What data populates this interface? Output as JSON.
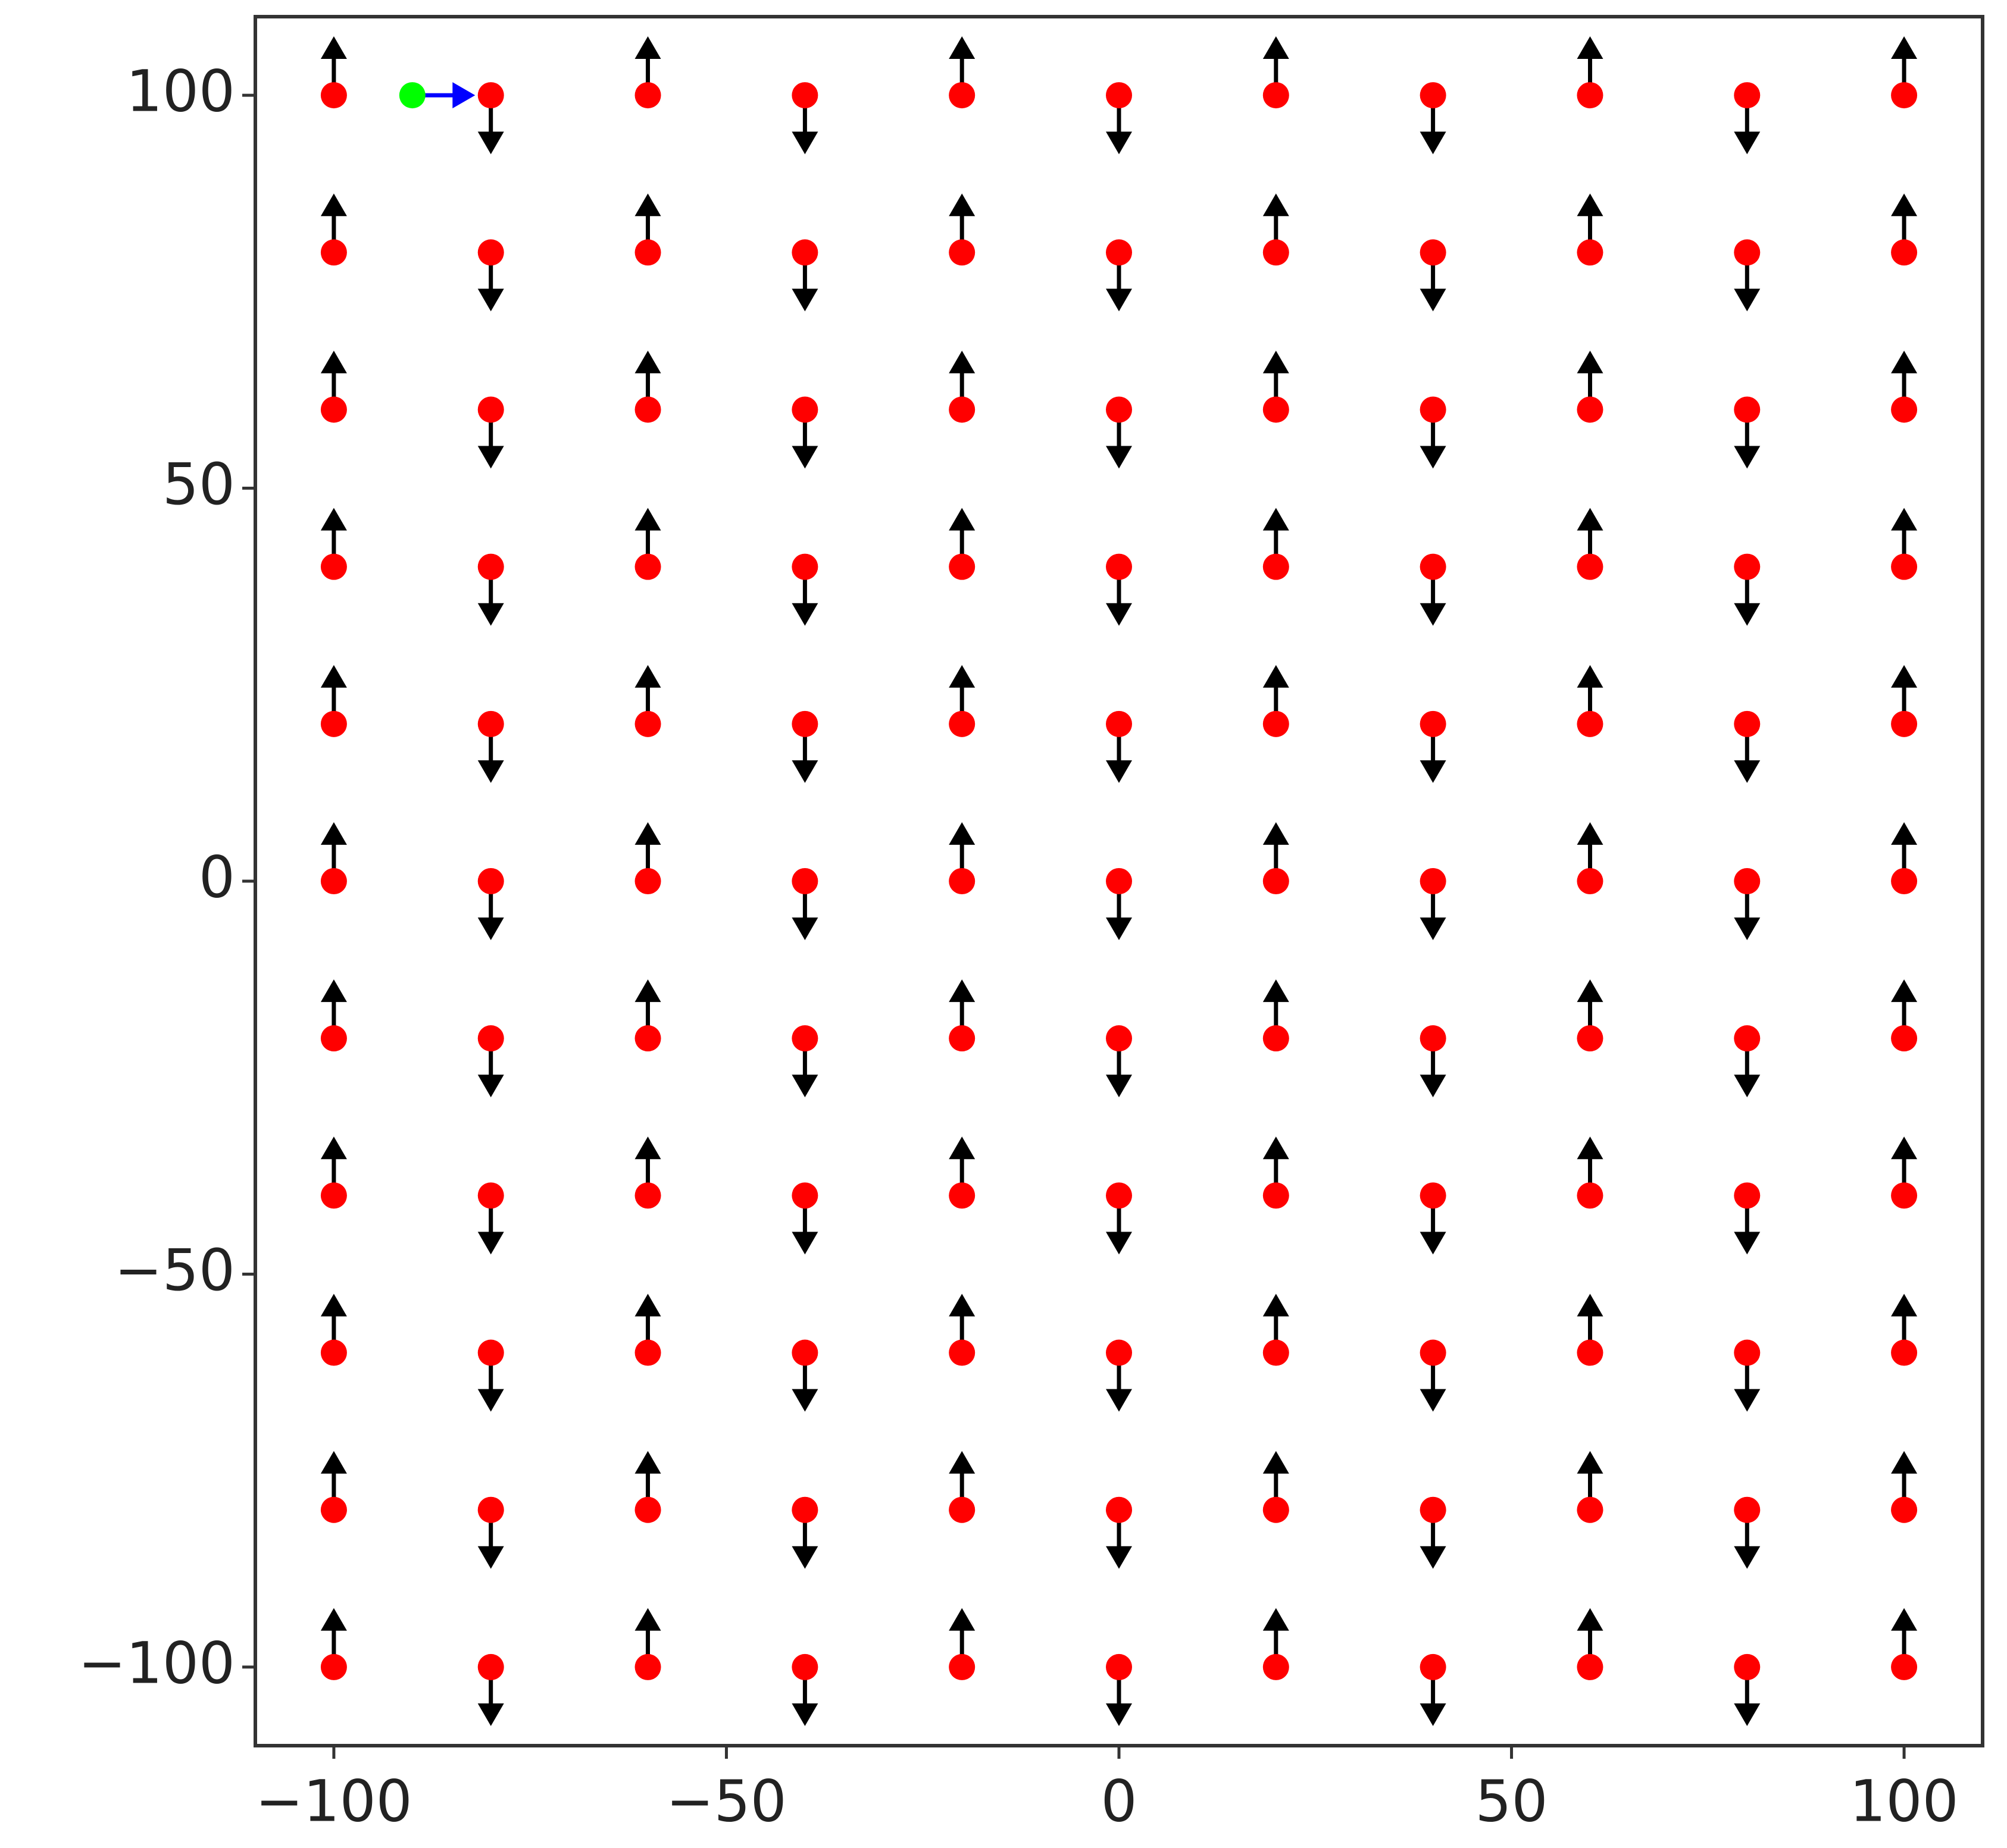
{
  "chart_data": {
    "type": "quiver",
    "xlim": [
      -110,
      110
    ],
    "ylim": [
      -110,
      110
    ],
    "xticks": [
      {
        "value": -100,
        "label": "−100"
      },
      {
        "value": -50,
        "label": "−50"
      },
      0,
      50,
      100
    ],
    "yticks": [
      {
        "value": -100,
        "label": "−100"
      },
      {
        "value": -50,
        "label": "−50"
      },
      0,
      50,
      100
    ],
    "points": {
      "color": "#ff0000",
      "x": [
        -100,
        -80,
        -60,
        -40,
        -20,
        0,
        20,
        40,
        60,
        80,
        100
      ],
      "y": [
        -100,
        -80,
        -60,
        -40,
        -20,
        0,
        20,
        40,
        60,
        80,
        100
      ]
    },
    "arrows": {
      "color": "#000000",
      "u": 0,
      "v": [
        7.5,
        -7.5,
        7.5,
        -7.5,
        7.5,
        -7.5,
        7.5,
        -7.5,
        7.5,
        -7.5,
        7.5
      ]
    },
    "marker": {
      "color": "#00ff00",
      "x": -90,
      "y": 100
    },
    "marker_arrow": {
      "color": "#0000ff",
      "u": 8,
      "v": 0
    }
  }
}
